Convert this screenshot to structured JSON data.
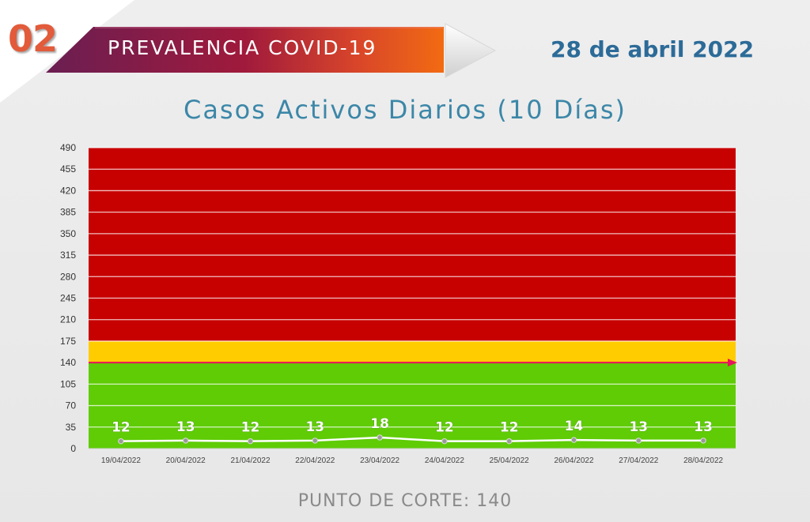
{
  "header": {
    "section_number": "02",
    "banner_title": "PREVALENCIA COVID-19",
    "date": "28 de abril 2022"
  },
  "chart_data": {
    "type": "line",
    "title": "Casos Activos Diarios (10 Días)",
    "xlabel": "",
    "ylabel": "",
    "categories": [
      "19/04/2022",
      "20/04/2022",
      "21/04/2022",
      "22/04/2022",
      "23/04/2022",
      "24/04/2022",
      "25/04/2022",
      "26/04/2022",
      "27/04/2022",
      "28/04/2022"
    ],
    "series": [
      {
        "values": [
          12,
          13,
          12,
          13,
          18,
          12,
          12,
          14,
          13,
          13
        ],
        "color": "#ffffff"
      }
    ],
    "ylim": [
      0,
      490
    ],
    "yticks": [
      0,
      35,
      70,
      105,
      140,
      175,
      210,
      245,
      280,
      315,
      350,
      385,
      420,
      455,
      490
    ],
    "grid": true,
    "legend": "none",
    "zones": [
      {
        "from": 0,
        "to": 140,
        "color": "#5fcc06"
      },
      {
        "from": 140,
        "to": 175,
        "color": "#ffcc00"
      },
      {
        "from": 175,
        "to": 490,
        "color": "#c70000"
      }
    ],
    "cutoff": {
      "value": 140,
      "color": "#e8135c"
    }
  },
  "footer": {
    "cutoff_label": "PUNTO DE CORTE: 140"
  }
}
